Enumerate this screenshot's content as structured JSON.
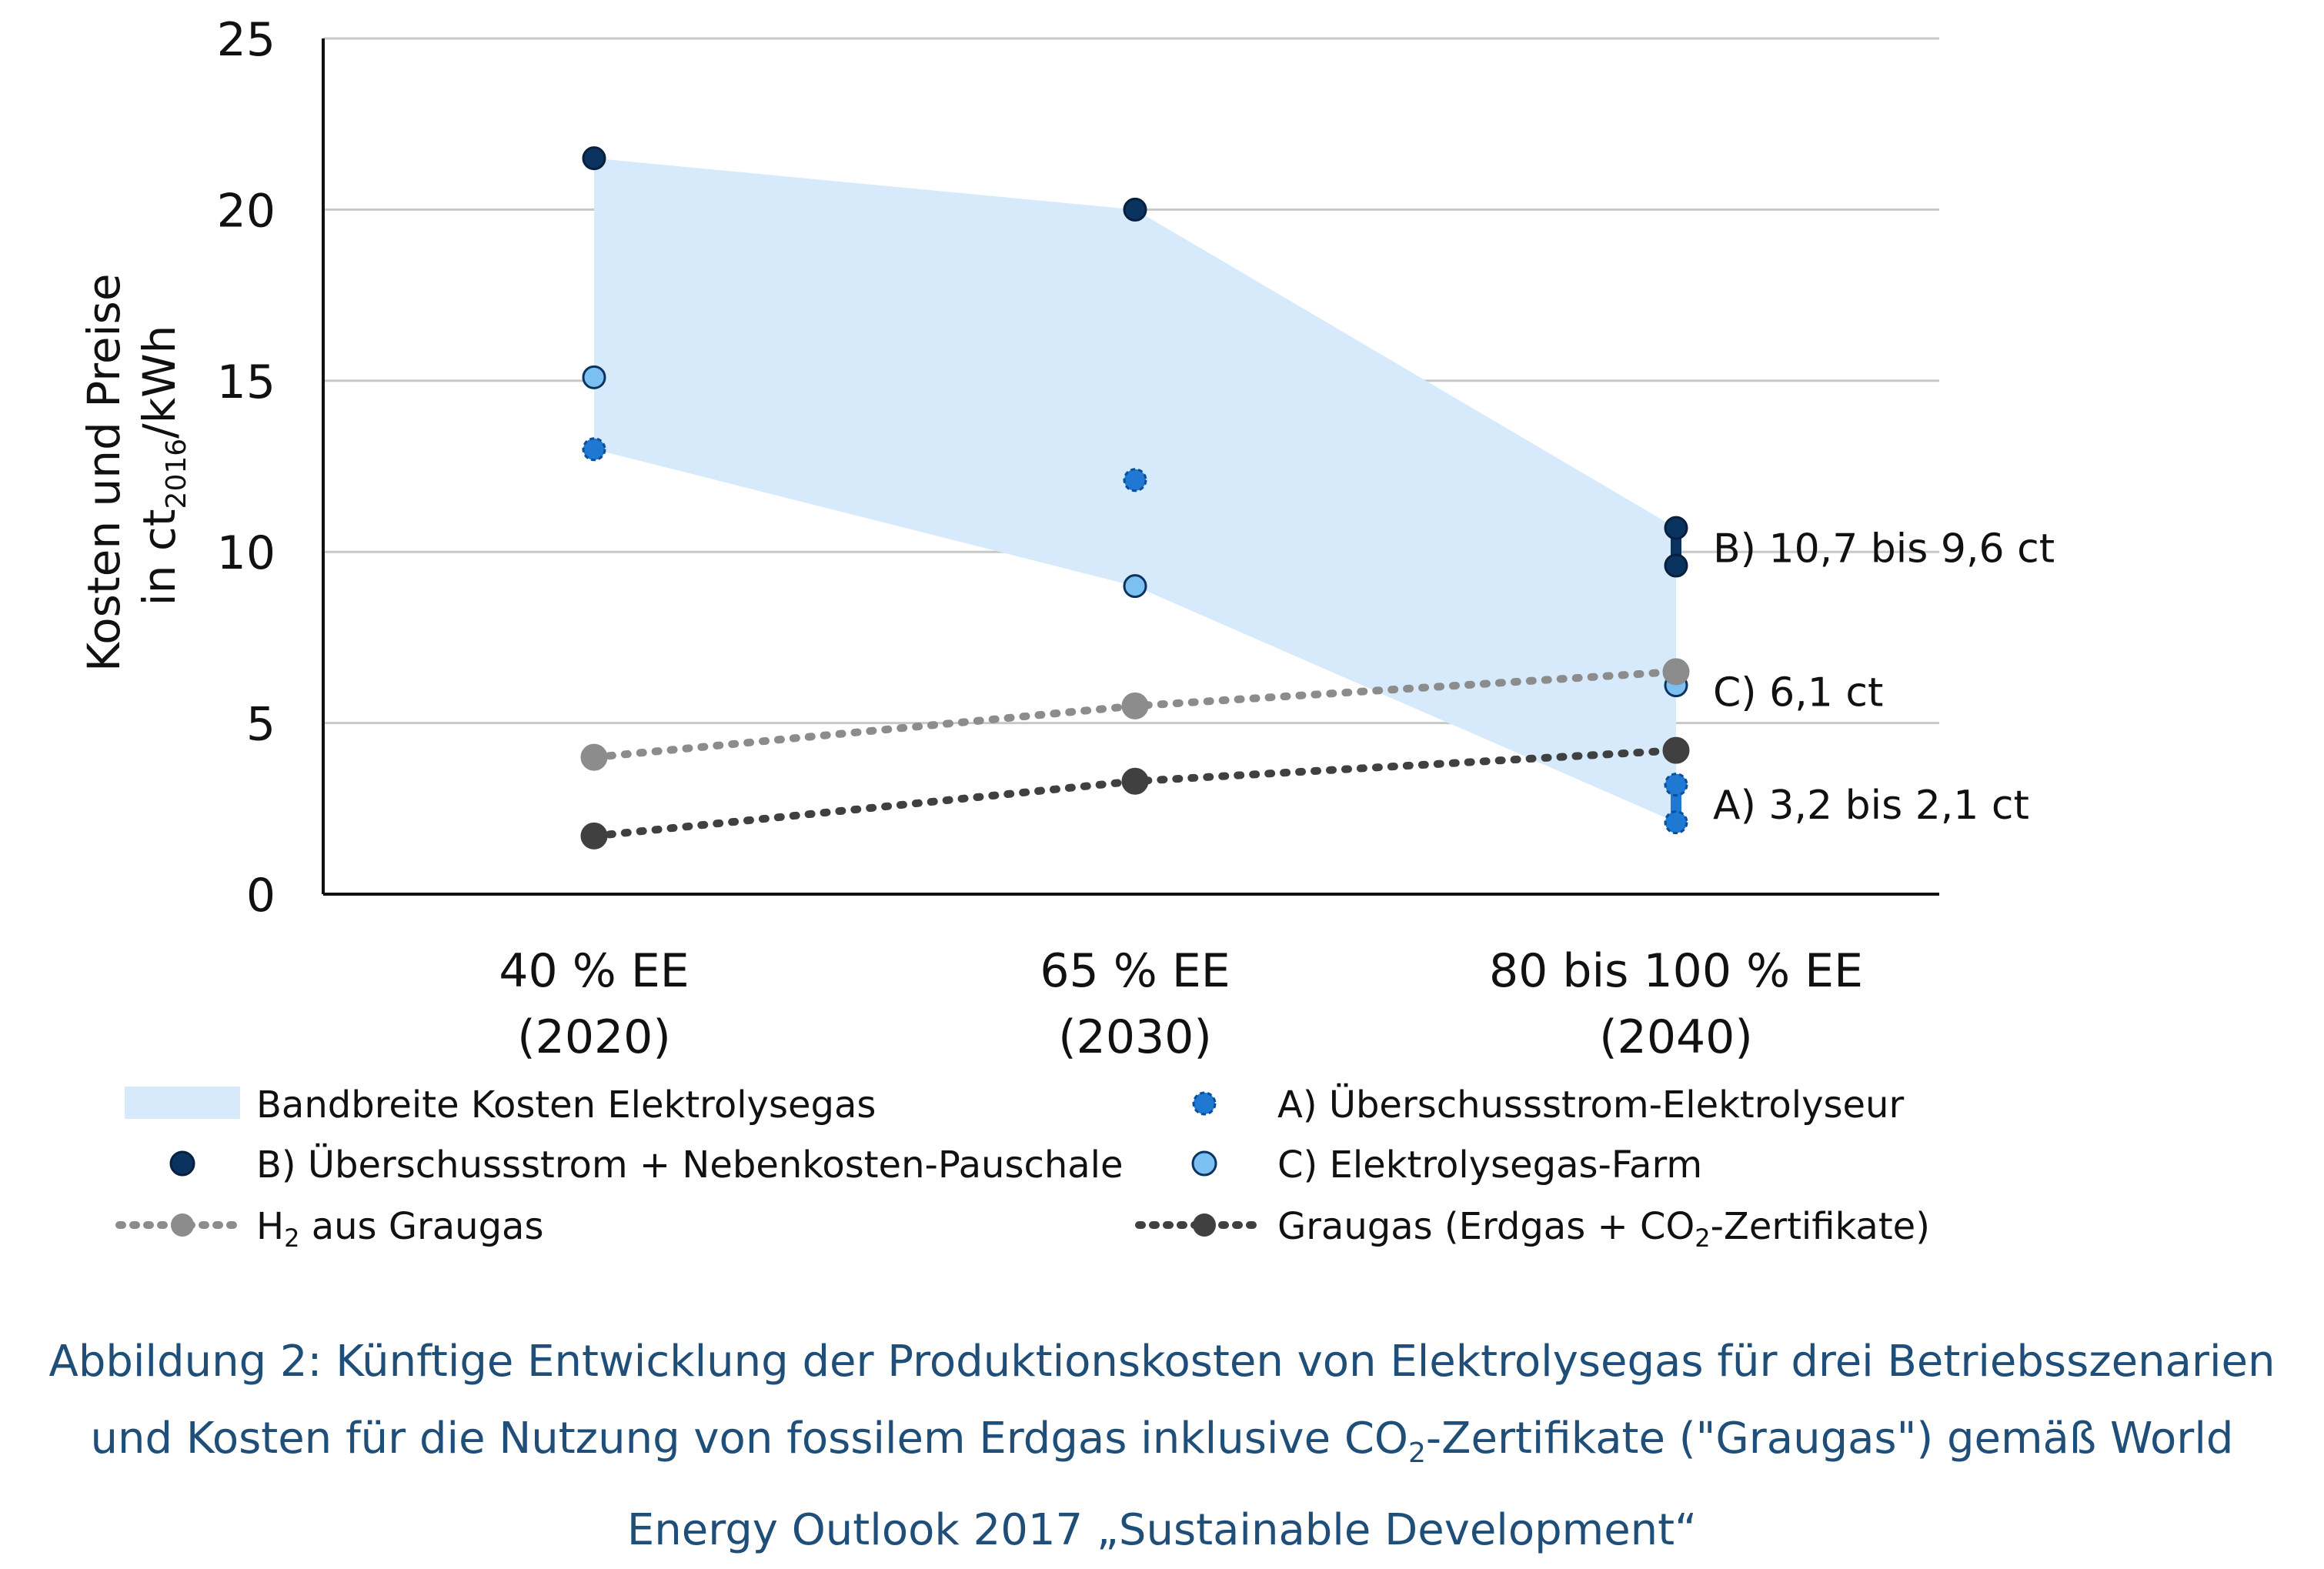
{
  "chart_data": {
    "type": "scatter",
    "ylabel_line1": "Kosten und Preise",
    "ylabel_line2_prefix": "in ct",
    "ylabel_line2_sub": "2016",
    "ylabel_line2_suffix": "/kWh",
    "ylim": [
      0,
      25
    ],
    "yticks": [
      0,
      5,
      10,
      15,
      20,
      25
    ],
    "grid": true,
    "categories": [
      {
        "line1": "40 % EE",
        "line2": "(2020)"
      },
      {
        "line1": "65 % EE",
        "line2": "(2030)"
      },
      {
        "line1": "80 bis 100 % EE",
        "line2": "(2040)"
      }
    ],
    "band": {
      "name": "Bandbreite Kosten Elektrolysegas",
      "upper": [
        21.5,
        20.0,
        10.7
      ],
      "lower": [
        13.0,
        9.0,
        2.1
      ],
      "color": "#d6eafb"
    },
    "series": [
      {
        "key": "A",
        "name": "A) Überschussstrom-Elektrolyseur",
        "color": "#1f78d1",
        "style": "dot",
        "points": [
          [
            0,
            13.0
          ],
          [
            1,
            12.1
          ],
          [
            2,
            3.2
          ],
          [
            2,
            2.1
          ]
        ]
      },
      {
        "key": "B",
        "name": "B) Überschussstrom + Nebenkosten-Pauschale",
        "color": "#0b3360",
        "style": "dot",
        "points": [
          [
            0,
            21.5
          ],
          [
            1,
            20.0
          ],
          [
            2,
            10.7
          ],
          [
            2,
            9.6
          ]
        ]
      },
      {
        "key": "C",
        "name": "C) Elektrolysegas-Farm",
        "color": "#7cc0f2",
        "style": "dot",
        "points": [
          [
            0,
            15.1
          ],
          [
            1,
            9.0
          ],
          [
            2,
            6.1
          ]
        ]
      },
      {
        "key": "H2",
        "name_prefix": "H",
        "name_sub": "2",
        "name_suffix": " aus  Graugas",
        "color": "#8c8c8c",
        "style": "dotted-line",
        "points": [
          [
            0,
            4.0
          ],
          [
            1,
            5.5
          ],
          [
            2,
            6.5
          ]
        ]
      },
      {
        "key": "G",
        "name_prefix": "Graugas  (Erdgas + CO",
        "name_sub": "2",
        "name_suffix": "-Zertifikate)",
        "color": "#404040",
        "style": "dotted-line",
        "points": [
          [
            0,
            1.7
          ],
          [
            1,
            3.3
          ],
          [
            2,
            4.2
          ]
        ]
      }
    ],
    "annotations": [
      {
        "text": "B) 10,7 bis 9,6 ct",
        "category": 2,
        "y": 10.15
      },
      {
        "text": "C) 6,1 ct",
        "category": 2,
        "y": 5.95
      },
      {
        "text": "A) 3,2 bis 2,1 ct",
        "category": 2,
        "y": 2.65
      }
    ],
    "connectors": [
      {
        "category": 2,
        "from": 10.7,
        "to": 9.6,
        "color": "#0b3360"
      },
      {
        "category": 2,
        "from": 3.2,
        "to": 2.1,
        "color": "#1f78d1"
      }
    ]
  },
  "caption": {
    "line1": "Abbildung 2: Künftige Entwicklung der Produktionskosten von Elektrolysegas für drei Betriebsszenarien",
    "line2_prefix": "und Kosten für die Nutzung von fossilem Erdgas inklusive CO",
    "line2_sub": "2",
    "line2_suffix": "-Zertifikate (\"Graugas\") gemäß World",
    "line3": "Energy Outlook 2017 „Sustainable Development“"
  }
}
